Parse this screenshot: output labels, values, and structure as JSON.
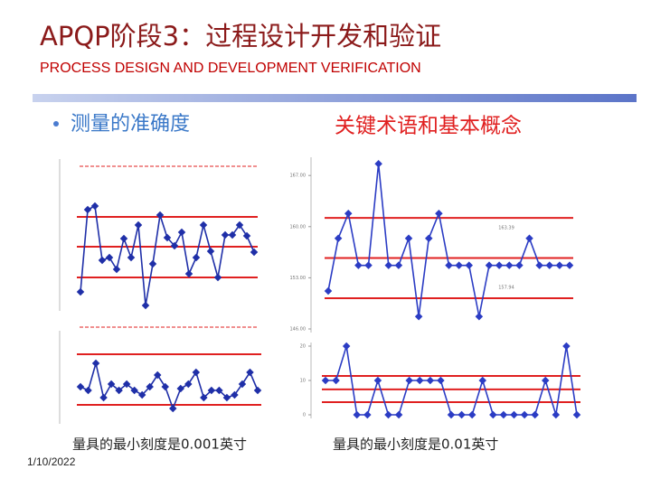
{
  "header": {
    "title": "APQP阶段3：过程设计开发和验证",
    "subtitle": "PROCESS DESIGN AND DEVELOPMENT VERIFICATION"
  },
  "bullet": "测量的准确度",
  "heading": "关键术语和基本概念",
  "captions": [
    "量具的最小刻度是0.001英寸",
    "量具的最小刻度是0.01英寸"
  ],
  "date": "1/10/2022",
  "chart_data": [
    {
      "type": "line",
      "color": "#1f2fa8",
      "limit_color": "#e02020",
      "ylim": [
        0,
        160
      ],
      "control_limits": [
        100,
        67,
        33
      ],
      "values": [
        17,
        108,
        112,
        52,
        55,
        42,
        76,
        55,
        91,
        2,
        48,
        102,
        77,
        68,
        83,
        37,
        55,
        91,
        62,
        33,
        80,
        80,
        91,
        79,
        61
      ]
    },
    {
      "type": "line",
      "color": "#1f2fa8",
      "limit_color": "#e02020",
      "ylim": [
        0,
        95
      ],
      "control_limits": [
        73,
        17
      ],
      "values": [
        37,
        33,
        63,
        25,
        40,
        33,
        40,
        33,
        28,
        37,
        50,
        37,
        13,
        35,
        40,
        53,
        25,
        33,
        33,
        25,
        28,
        40,
        53,
        33
      ]
    },
    {
      "type": "line",
      "color": "#2b3cc4",
      "limit_color": "#e02020",
      "ylim": [
        146,
        169
      ],
      "control_limits": [
        161.2,
        155.7,
        150.2
      ],
      "yticks": [
        {
          "value": 167,
          "label": "167.00"
        },
        {
          "value": 160,
          "label": "160.00"
        },
        {
          "value": 153,
          "label": "153.00"
        },
        {
          "value": 146,
          "label": "146.00"
        }
      ],
      "annotations": [
        "163.39",
        "157.94"
      ],
      "values": [
        151.2,
        158.4,
        161.8,
        154.7,
        154.7,
        168.6,
        154.7,
        154.7,
        158.4,
        147.7,
        158.4,
        161.8,
        154.7,
        154.7,
        154.7,
        147.7,
        154.7,
        154.7,
        154.7,
        154.7,
        158.4,
        154.7,
        154.7,
        154.7,
        154.7
      ]
    },
    {
      "type": "line",
      "color": "#2b3cc4",
      "limit_color": "#e02020",
      "ylim": [
        0,
        20
      ],
      "control_limits": [
        11.3,
        7.4,
        3.7
      ],
      "yticks": [
        20,
        10,
        0
      ],
      "values": [
        10,
        10,
        20,
        0,
        0,
        10,
        0,
        0,
        10,
        10,
        10,
        10,
        0,
        0,
        0,
        10,
        0,
        0,
        0,
        0,
        0,
        10,
        0,
        20,
        0
      ]
    }
  ]
}
